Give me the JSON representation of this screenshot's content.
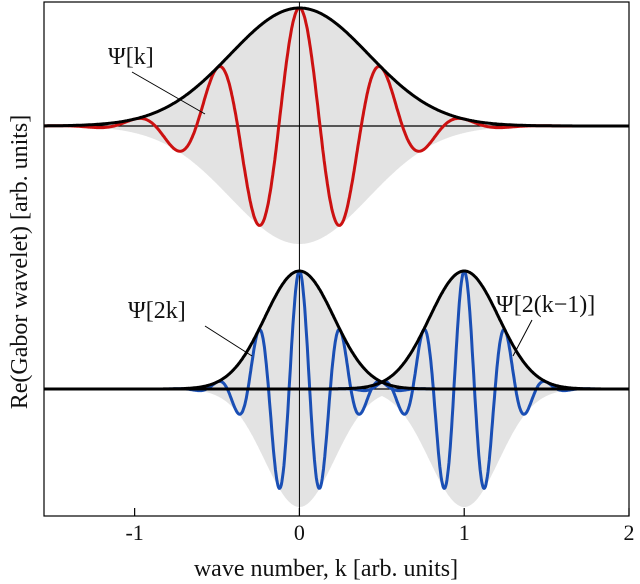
{
  "chart_data": {
    "type": "line",
    "xlabel": "wave number, k [arb. units]",
    "ylabel": "Re(Gabor wavelet) [arb. units]",
    "xlim": [
      -1.55,
      2.0
    ],
    "x_ticks": [
      -1,
      0,
      1,
      2
    ],
    "x_tick_labels": [
      "-1",
      "0",
      "1",
      "2"
    ],
    "grid": false,
    "colors": {
      "red": "#cc1111",
      "blue": "#1a4fb5",
      "envelope": "#000000",
      "fill": "#e3e3e3"
    },
    "panels": [
      {
        "name": "top",
        "baseline": 0,
        "ylim": [
          -1.0,
          1.0
        ],
        "series": [
          {
            "label": "Ψ[k]",
            "color": "#cc1111",
            "center": 0,
            "sigma": 0.42,
            "frequency": 2.0,
            "amplitude": 1.0
          }
        ]
      },
      {
        "name": "bottom",
        "baseline": 0,
        "ylim": [
          -1.0,
          1.0
        ],
        "series": [
          {
            "label": "Ψ[2k]",
            "color": "#1a4fb5",
            "center": 0,
            "sigma": 0.21,
            "frequency": 4.0,
            "amplitude": 1.0
          },
          {
            "label": "Ψ[2(k−1)]",
            "color": "#1a4fb5",
            "center": 1,
            "sigma": 0.21,
            "frequency": 4.0,
            "amplitude": 1.0
          }
        ]
      }
    ]
  }
}
